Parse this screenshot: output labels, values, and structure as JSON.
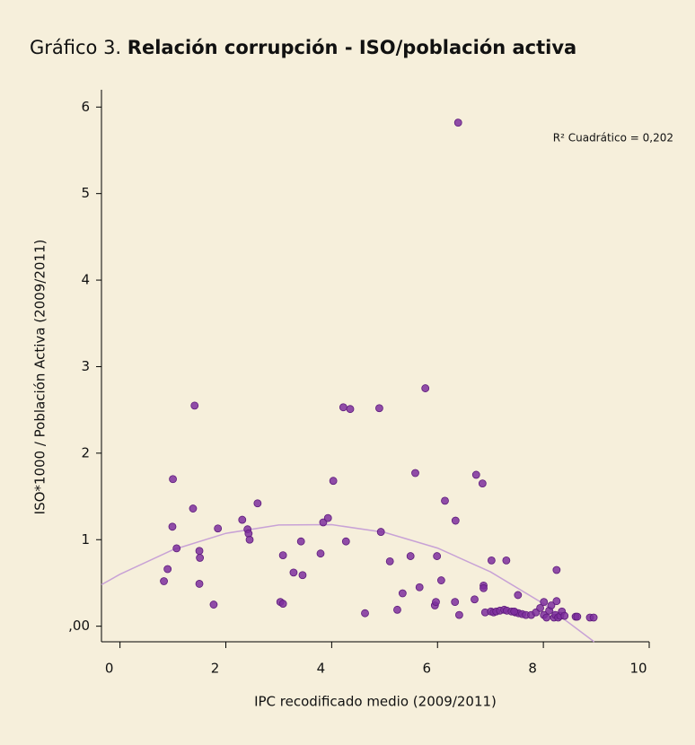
{
  "chart_data": {
    "type": "scatter",
    "title_label": "Gráfico 3.",
    "title": "Relación corrupción - ISO/población activa",
    "annotation": "R² Cuadrático = 0,202",
    "x_label": "IPC recodificado medio (2009/2011)",
    "y_label": "ISO*1000 / Población Activa (2009/2011)",
    "xlim": [
      -0.35,
      10
    ],
    "ylim": [
      -0.18,
      6.2
    ],
    "xticks": [
      0,
      2,
      4,
      6,
      8,
      10
    ],
    "yticks": [
      {
        "value": 0,
        "label": ",00"
      },
      1,
      2,
      3,
      4,
      5,
      6
    ],
    "color": "#7e2f9e",
    "x": [
      0.83,
      0.9,
      0.99,
      1.0,
      1.07,
      1.38,
      1.41,
      1.5,
      1.51,
      1.5,
      1.77,
      1.85,
      2.31,
      2.41,
      2.43,
      2.45,
      2.6,
      3.03,
      3.08,
      3.08,
      3.28,
      3.42,
      3.45,
      3.79,
      3.84,
      3.93,
      4.03,
      4.22,
      4.27,
      4.35,
      4.63,
      4.9,
      4.93,
      5.1,
      5.24,
      5.34,
      5.49,
      5.58,
      5.66,
      5.77,
      5.95,
      5.99,
      5.97,
      6.07,
      6.14,
      6.33,
      6.34,
      6.39,
      6.41,
      6.7,
      6.73,
      6.85,
      6.87,
      6.87,
      6.9,
      7.01,
      7.06,
      7.11,
      7.18,
      7.26,
      7.31,
      7.4,
      7.47,
      7.53,
      7.6,
      7.67,
      7.77,
      7.86,
      7.94,
      8.01,
      8.01,
      8.06,
      8.11,
      8.15,
      8.2,
      8.23,
      8.25,
      8.28,
      8.32,
      8.35,
      8.4,
      7.02,
      7.3,
      7.52,
      8.25,
      8.61,
      8.64,
      8.88,
      8.95,
      7.45
    ],
    "values": [
      0.52,
      0.66,
      1.15,
      1.7,
      0.9,
      1.36,
      2.55,
      0.87,
      0.79,
      0.49,
      0.25,
      1.13,
      1.23,
      1.12,
      1.07,
      1.0,
      1.42,
      0.28,
      0.26,
      0.82,
      0.62,
      0.98,
      0.59,
      0.84,
      1.2,
      1.25,
      1.68,
      2.53,
      0.98,
      2.51,
      0.15,
      2.52,
      1.09,
      0.75,
      0.19,
      0.38,
      0.81,
      1.77,
      0.45,
      2.75,
      0.24,
      0.81,
      0.28,
      0.53,
      1.45,
      0.28,
      1.22,
      5.82,
      0.13,
      0.31,
      1.75,
      1.65,
      0.47,
      0.44,
      0.16,
      0.17,
      0.16,
      0.17,
      0.18,
      0.19,
      0.18,
      0.17,
      0.16,
      0.15,
      0.14,
      0.13,
      0.13,
      0.16,
      0.21,
      0.28,
      0.13,
      0.1,
      0.18,
      0.24,
      0.1,
      0.13,
      0.29,
      0.1,
      0.12,
      0.17,
      0.12,
      0.76,
      0.76,
      0.36,
      0.65,
      0.11,
      0.11,
      0.1,
      0.1,
      0.17
    ],
    "fit": {
      "x": [
        -0.35,
        0,
        1,
        2,
        3,
        4,
        5,
        6,
        7,
        8,
        8.96
      ],
      "values": [
        0.48,
        0.6,
        0.883,
        1.073,
        1.17,
        1.174,
        1.085,
        0.903,
        0.628,
        0.261,
        -0.18
      ],
      "color": "#c8a2d6"
    }
  }
}
